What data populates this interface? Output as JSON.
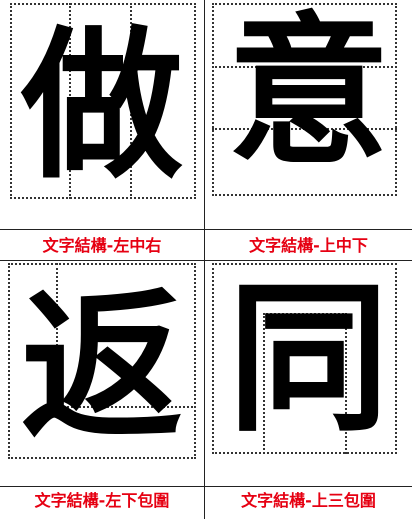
{
  "cards": [
    {
      "char": "做",
      "label": "文字結構-左中右"
    },
    {
      "char": "意",
      "label": "文字結構-上中下"
    },
    {
      "char": "返",
      "label": "文字結構-左下包圍"
    },
    {
      "char": "同",
      "label": "文字結構-上三包圍"
    }
  ],
  "colors": {
    "label": "#e60012",
    "glyph": "#000000",
    "guide": "#333333"
  }
}
